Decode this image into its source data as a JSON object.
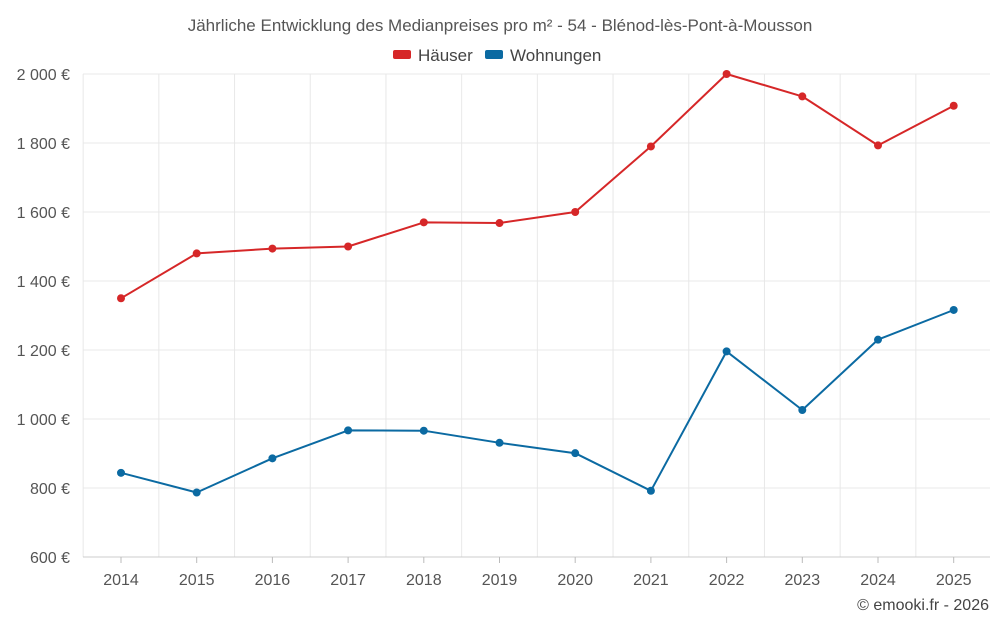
{
  "chart_data": {
    "type": "line",
    "title": "Jährliche Entwicklung des Medianpreises pro m² - 54 - Blénod-lès-Pont-à-Mousson",
    "categories": [
      "2014",
      "2015",
      "2016",
      "2017",
      "2018",
      "2019",
      "2020",
      "2021",
      "2022",
      "2023",
      "2024",
      "2025"
    ],
    "series": [
      {
        "name": "Häuser",
        "color": "#d62728",
        "values": [
          1350,
          1480,
          1494,
          1500,
          1570,
          1568,
          1600,
          1790,
          2000,
          1935,
          1793,
          1908
        ]
      },
      {
        "name": "Wohnungen",
        "color": "#0b6aa2",
        "values": [
          844,
          787,
          886,
          967,
          966,
          931,
          901,
          792,
          1196,
          1026,
          1230,
          1316
        ]
      }
    ],
    "ylim": [
      600,
      2000
    ],
    "yticks": [
      600,
      800,
      1000,
      1200,
      1400,
      1600,
      1800,
      2000
    ],
    "ytick_labels": [
      "600 €",
      "800 €",
      "1 000 €",
      "1 200 €",
      "1 400 €",
      "1 600 €",
      "1 800 €",
      "2 000 €"
    ],
    "xlabel": "",
    "ylabel": "",
    "grid": true,
    "legend_position": "top-center"
  },
  "credit": "© emooki.fr - 2026"
}
